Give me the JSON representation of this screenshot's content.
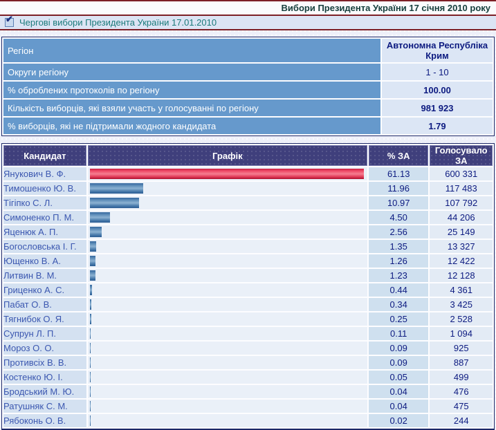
{
  "header": {
    "title": "Вибори Президента України 17 січня 2010 року",
    "subtitle": "Чергові вибори Президента України 17.01.2010",
    "checkbox_checked": true
  },
  "region_table": {
    "rows": [
      {
        "label": "Регіон",
        "value": "Автономна Республіка Крим"
      },
      {
        "label": "Округи регіону",
        "value": "1 - 10"
      },
      {
        "label": "% оброблених протоколів по регіону",
        "value": "100.00"
      },
      {
        "label": "Кількість виборців, які взяли участь у голосуванні по регіону",
        "value": "981 923"
      },
      {
        "label": "% виборців, які не підтримали жодного кандидата",
        "value": "1.79"
      }
    ]
  },
  "results_table": {
    "headers": {
      "candidate": "Кандидат",
      "chart": "Графік",
      "percent": "% ЗА",
      "votes": "Голосувало ЗА"
    },
    "rows": [
      {
        "candidate": "Янукович В. Ф.",
        "pct": 61.13,
        "percent": "61.13",
        "votes": "600 331",
        "bar": "red"
      },
      {
        "candidate": "Тимошенко Ю. В.",
        "pct": 11.96,
        "percent": "11.96",
        "votes": "117 483",
        "bar": "blue"
      },
      {
        "candidate": "Тігіпко С. Л.",
        "pct": 10.97,
        "percent": "10.97",
        "votes": "107 792",
        "bar": "blue"
      },
      {
        "candidate": "Симоненко П. М.",
        "pct": 4.5,
        "percent": "4.50",
        "votes": "44 206",
        "bar": "blue"
      },
      {
        "candidate": "Яценюк А. П.",
        "pct": 2.56,
        "percent": "2.56",
        "votes": "25 149",
        "bar": "blue"
      },
      {
        "candidate": "Богословська І. Г.",
        "pct": 1.35,
        "percent": "1.35",
        "votes": "13 327",
        "bar": "blue"
      },
      {
        "candidate": "Ющенко В. А.",
        "pct": 1.26,
        "percent": "1.26",
        "votes": "12 422",
        "bar": "blue"
      },
      {
        "candidate": "Литвин В. М.",
        "pct": 1.23,
        "percent": "1.23",
        "votes": "12 128",
        "bar": "blue"
      },
      {
        "candidate": "Гриценко А. С.",
        "pct": 0.44,
        "percent": "0.44",
        "votes": "4 361",
        "bar": "blue"
      },
      {
        "candidate": "Пабат О. В.",
        "pct": 0.34,
        "percent": "0.34",
        "votes": "3 425",
        "bar": "blue"
      },
      {
        "candidate": "Тягнибок О. Я.",
        "pct": 0.25,
        "percent": "0.25",
        "votes": "2 528",
        "bar": "blue"
      },
      {
        "candidate": "Супрун Л. П.",
        "pct": 0.11,
        "percent": "0.11",
        "votes": "1 094",
        "bar": "blue"
      },
      {
        "candidate": "Мороз О. О.",
        "pct": 0.09,
        "percent": "0.09",
        "votes": "925",
        "bar": "blue"
      },
      {
        "candidate": "Противсіх В. В.",
        "pct": 0.09,
        "percent": "0.09",
        "votes": "887",
        "bar": "blue"
      },
      {
        "candidate": "Костенко Ю. І.",
        "pct": 0.05,
        "percent": "0.05",
        "votes": "499",
        "bar": "blue"
      },
      {
        "candidate": "Бродський М. Ю.",
        "pct": 0.04,
        "percent": "0.04",
        "votes": "476",
        "bar": "blue"
      },
      {
        "candidate": "Ратушняк С. М.",
        "pct": 0.04,
        "percent": "0.04",
        "votes": "475",
        "bar": "blue"
      },
      {
        "candidate": "Рябоконь О. В.",
        "pct": 0.02,
        "percent": "0.02",
        "votes": "244",
        "bar": "blue"
      }
    ]
  },
  "chart_data": {
    "type": "bar",
    "title": "Графік",
    "categories": [
      "Янукович В. Ф.",
      "Тимошенко Ю. В.",
      "Тігіпко С. Л.",
      "Симоненко П. М.",
      "Яценюк А. П.",
      "Богословська І. Г.",
      "Ющенко В. А.",
      "Литвин В. М.",
      "Гриценко А. С.",
      "Пабат О. В.",
      "Тягнибок О. Я.",
      "Супрун Л. П.",
      "Мороз О. О.",
      "Противсіх В. В.",
      "Костенко Ю. І.",
      "Бродський М. Ю.",
      "Ратушняк С. М.",
      "Рябоконь О. В."
    ],
    "values": [
      61.13,
      11.96,
      10.97,
      4.5,
      2.56,
      1.35,
      1.26,
      1.23,
      0.44,
      0.34,
      0.25,
      0.11,
      0.09,
      0.09,
      0.05,
      0.04,
      0.04,
      0.02
    ],
    "xlabel": "",
    "ylabel": "% ЗА",
    "orientation": "horizontal"
  },
  "colors": {
    "leader_bar": "#e8365a",
    "bar": "#4a7cac",
    "table_header_bg": "#3f3f7c",
    "region_label_bg": "#6699cc",
    "border_maroon": "#7d1f26",
    "value_text": "#0c1a80",
    "subtitle_text": "#1a7a7a"
  }
}
